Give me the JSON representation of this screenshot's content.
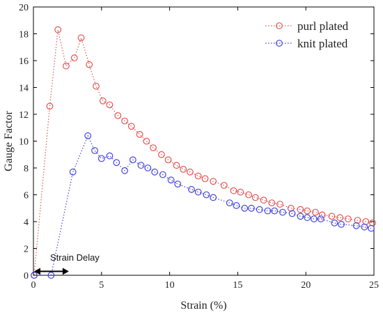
{
  "chart_data": {
    "type": "scatter",
    "xlabel": "Strain (%)",
    "ylabel": "Gauge Factor",
    "xlim": [
      0,
      25
    ],
    "ylim": [
      0,
      20
    ],
    "xticks": [
      "0",
      "5",
      "10",
      "15",
      "20",
      "25"
    ],
    "yticks": [
      "0",
      "2",
      "4",
      "6",
      "8",
      "10",
      "12",
      "14",
      "16",
      "18",
      "20"
    ],
    "grid": false,
    "legend_position": "top-right",
    "annotation": {
      "text": "Strain Delay",
      "x_from": 0,
      "x_to": 2.6,
      "y": 0.5
    },
    "series": [
      {
        "name": "purl plated",
        "color": "#e05555",
        "x": [
          0.05,
          1.2,
          1.8,
          2.4,
          3.0,
          3.5,
          4.1,
          4.6,
          5.1,
          5.6,
          6.2,
          6.7,
          7.2,
          7.8,
          8.3,
          8.8,
          9.4,
          9.9,
          10.5,
          11.0,
          11.5,
          12.1,
          12.6,
          13.2,
          14.0,
          14.7,
          15.2,
          15.8,
          16.3,
          16.9,
          17.5,
          18.1,
          18.9,
          19.6,
          20.1,
          20.7,
          21.2,
          21.9,
          22.5,
          23.1,
          23.8,
          24.4,
          24.9
        ],
        "y": [
          0,
          12.6,
          18.3,
          15.6,
          16.2,
          17.7,
          15.7,
          14.1,
          13.0,
          12.7,
          11.9,
          11.5,
          11.1,
          10.5,
          10.0,
          9.5,
          9.0,
          8.6,
          8.2,
          7.9,
          7.7,
          7.4,
          7.2,
          7.0,
          6.7,
          6.3,
          6.2,
          6.0,
          5.8,
          5.6,
          5.4,
          5.3,
          5.0,
          4.9,
          4.8,
          4.7,
          4.5,
          4.4,
          4.3,
          4.2,
          4.1,
          4.0,
          3.9
        ]
      },
      {
        "name": "knit plated",
        "color": "#4444dd",
        "x": [
          0.05,
          1.3,
          2.9,
          4.0,
          4.5,
          5.0,
          5.6,
          6.1,
          6.7,
          7.3,
          7.9,
          8.4,
          8.9,
          9.5,
          10.1,
          10.6,
          11.6,
          12.1,
          12.7,
          13.2,
          14.4,
          14.9,
          15.5,
          16.0,
          16.6,
          17.2,
          17.7,
          18.3,
          19.0,
          19.6,
          20.1,
          20.6,
          21.1,
          22.1,
          22.6,
          23.7,
          24.3,
          24.8
        ],
        "y": [
          0,
          0,
          7.7,
          10.4,
          9.3,
          8.7,
          8.9,
          8.4,
          7.8,
          8.6,
          8.2,
          8.0,
          7.7,
          7.5,
          7.1,
          6.8,
          6.4,
          6.2,
          6.0,
          5.8,
          5.4,
          5.2,
          5.0,
          5.0,
          4.9,
          4.8,
          4.8,
          4.7,
          4.6,
          4.4,
          4.3,
          4.2,
          4.2,
          3.9,
          3.8,
          3.7,
          3.6,
          3.5
        ]
      }
    ]
  }
}
